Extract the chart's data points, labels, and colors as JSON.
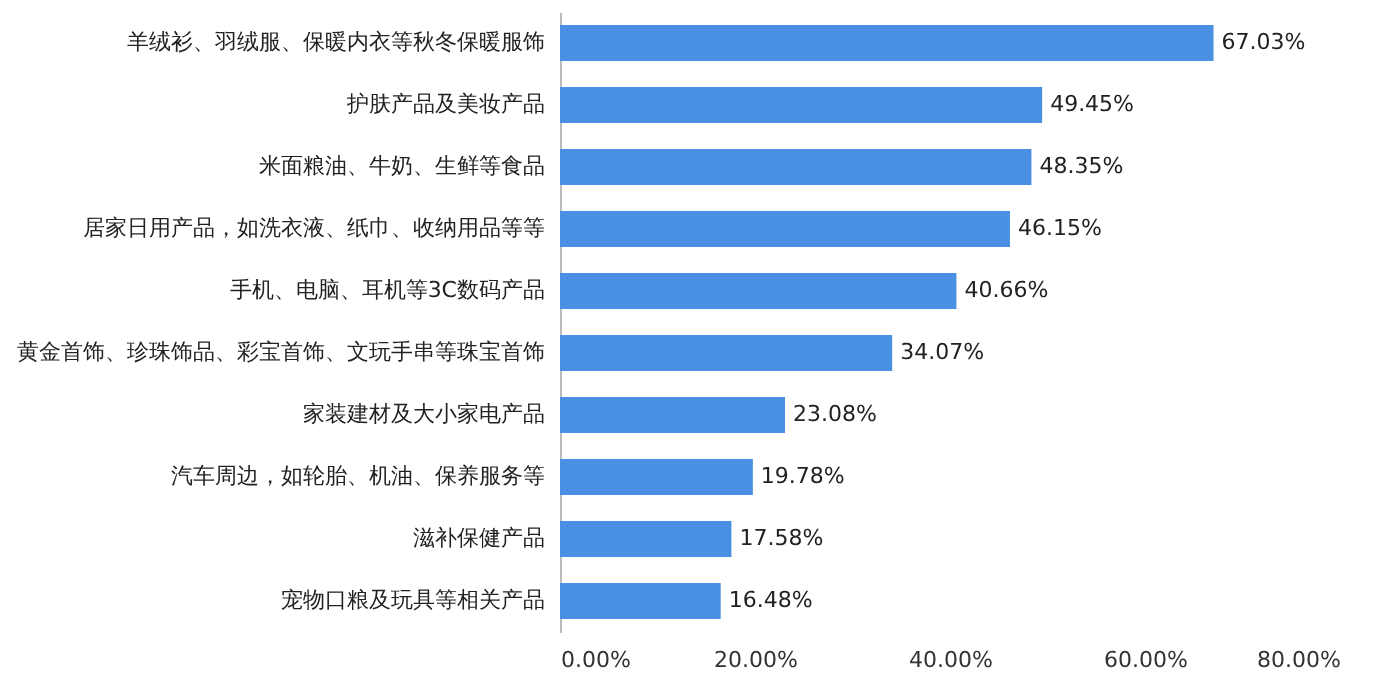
{
  "chart_data": {
    "type": "bar",
    "orientation": "horizontal",
    "categories": [
      "羊绒衫、羽绒服、保暖内衣等秋冬保暖服饰",
      "护肤产品及美妆产品",
      "米面粮油、牛奶、生鲜等食品",
      "居家日用产品，如洗衣液、纸巾、收纳用品等等",
      "手机、电脑、耳机等3C数码产品",
      "黄金首饰、珍珠饰品、彩宝首饰、文玩手串等珠宝首饰",
      "家装建材及大小家电产品",
      "汽车周边，如轮胎、机油、保养服务等",
      "滋补保健产品",
      "宠物口粮及玩具等相关产品"
    ],
    "values": [
      67.03,
      49.45,
      48.35,
      46.15,
      40.66,
      34.07,
      23.08,
      19.78,
      17.58,
      16.48
    ],
    "value_labels": [
      "67.03%",
      "49.45%",
      "48.35%",
      "46.15%",
      "40.66%",
      "34.07%",
      "23.08%",
      "19.78%",
      "17.58%",
      "16.48%"
    ],
    "color": "#4a90e2",
    "xlim": [
      0,
      80
    ],
    "xticks": [
      {
        "value": 0,
        "label": "0.00%"
      },
      {
        "value": 20,
        "label": "20.00%"
      },
      {
        "value": 40,
        "label": "40.00%"
      },
      {
        "value": 60,
        "label": "60.00%"
      },
      {
        "value": 80,
        "label": "80.00%"
      }
    ],
    "grid": false
  }
}
